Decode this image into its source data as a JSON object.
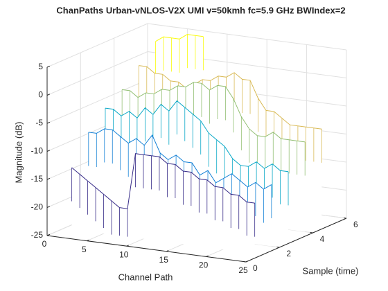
{
  "chart_data": {
    "type": "waterfall",
    "title": "ChanPaths Urban-vNLOS-V2X UMI v=50kmh fc=5.9 GHz BWIndex=2",
    "xlabel": "Channel Path",
    "ylabel": "Sample (time)",
    "zlabel": "Magnitude (dB)",
    "x": [
      1,
      2,
      3,
      4,
      5,
      6,
      7,
      8,
      9,
      10,
      11,
      12,
      13,
      14,
      15,
      16,
      17,
      18,
      19,
      20,
      21,
      22,
      23,
      24
    ],
    "series": [
      {
        "name": "1",
        "sample": 1,
        "color": "#352a87",
        "values": [
          -14,
          -15,
          -16,
          -17,
          -18,
          -19,
          -20,
          -20,
          -10,
          -10,
          -10,
          -10,
          -11,
          -11,
          -12,
          -12,
          -13,
          -13,
          -14,
          -14,
          -15,
          -15,
          -16,
          -16
        ]
      },
      {
        "name": "2",
        "sample": 2,
        "color": "#1481d6",
        "values": [
          -9,
          -9,
          -8,
          -8,
          -9,
          -10,
          -9,
          -10,
          -8,
          -11,
          -12,
          -11,
          -12,
          -12,
          -14,
          -13,
          -15,
          -14,
          -13,
          -14,
          -15,
          -14,
          -15,
          -14
        ]
      },
      {
        "name": "3",
        "sample": 3,
        "color": "#06a7c6",
        "values": [
          -6,
          -6,
          -7,
          -6,
          -7,
          -5,
          -6,
          -4,
          -5,
          -3,
          -4,
          -5,
          -6,
          -8,
          -9,
          -10,
          -12,
          -13,
          -13,
          -12,
          -13,
          -12,
          -13,
          -13
        ]
      },
      {
        "name": "4",
        "sample": 4,
        "color": "#92bf73",
        "values": [
          -4,
          -4,
          -5,
          -4,
          -4,
          -3,
          -3,
          -2,
          -2,
          -1,
          -1,
          -2,
          -1,
          -1,
          -3,
          -6,
          -8,
          -9,
          -9,
          -8,
          -9,
          -9,
          -9,
          -9
        ]
      },
      {
        "name": "5",
        "sample": 5,
        "color": "#d9ba56",
        "values": [
          -1,
          -1,
          -2,
          -2,
          -3,
          -3,
          -4,
          -3,
          -2,
          -2,
          -1,
          -1,
          0,
          -1,
          -1,
          -4,
          -6,
          -6,
          -7,
          -8,
          -8,
          -8,
          -8,
          -8
        ]
      },
      {
        "name": "6",
        "sample": 6,
        "color": "#f9fb0e",
        "values": [
          2,
          3,
          3,
          3,
          4,
          4,
          4,
          null,
          null,
          null,
          null,
          null,
          null,
          null,
          null,
          null,
          null,
          null,
          null,
          null,
          null,
          null,
          null,
          null
        ]
      }
    ],
    "xlim": [
      0,
      25
    ],
    "xticks": [
      0,
      5,
      10,
      15,
      20,
      25
    ],
    "ylim": [
      0,
      6
    ],
    "yticks": [
      0,
      2,
      4,
      6
    ],
    "zlim": [
      -25,
      5
    ],
    "zticks": [
      -25,
      -20,
      -15,
      -10,
      -5,
      0,
      5
    ],
    "grid": true
  }
}
